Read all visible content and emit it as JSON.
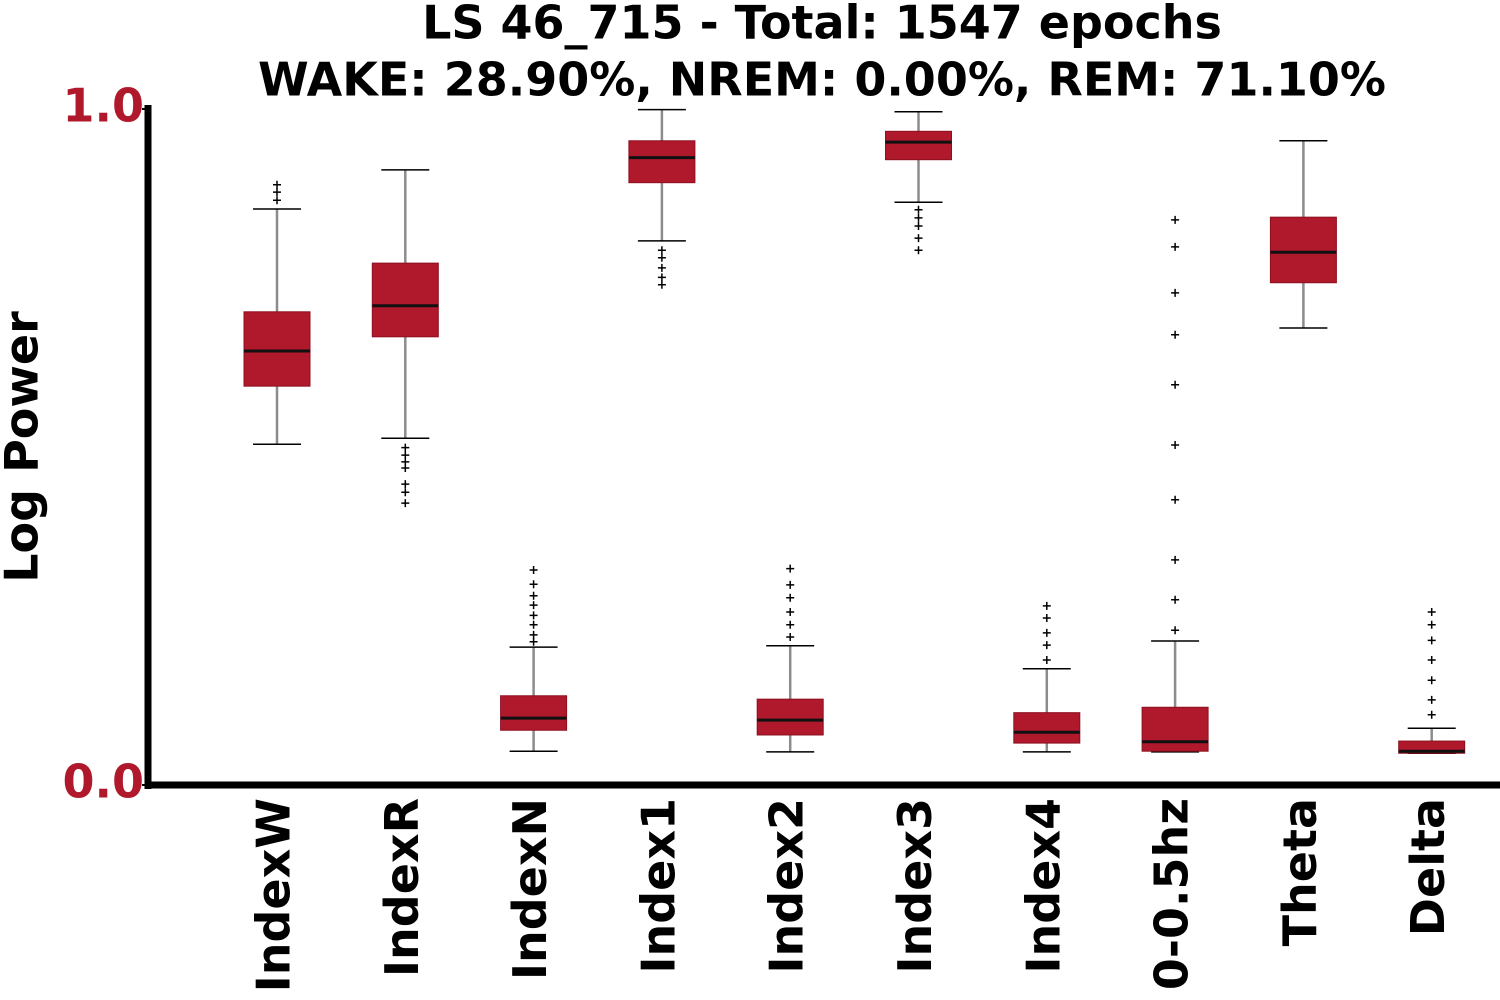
{
  "chart_data": {
    "type": "box",
    "title": "LS 46_715 - Total: 1547 epochs",
    "subtitle": "WAKE: 28.90%, NREM: 0.00%, REM: 71.10%",
    "y_label": "Log Power",
    "color": "#b0182c",
    "tick_color": "#b0182c",
    "ylim": [
      0,
      1
    ],
    "yticks": [
      {
        "value": 0,
        "label": "0.0"
      },
      {
        "value": 1,
        "label": "1.0"
      }
    ],
    "categories": [
      "IndexW",
      "IndexR",
      "IndexN",
      "Index1",
      "Index2",
      "Index3",
      "Index4",
      "0-0.5hz",
      "Theta",
      "Delta"
    ],
    "boxes": [
      {
        "whislo": 0.504,
        "q1": 0.59,
        "med": 0.642,
        "q3": 0.7,
        "whishi": 0.852,
        "fliers": [
          0.865,
          0.877,
          0.888
        ]
      },
      {
        "whislo": 0.513,
        "q1": 0.663,
        "med": 0.709,
        "q3": 0.772,
        "whishi": 0.91,
        "fliers": [
          0.499,
          0.488,
          0.478,
          0.469,
          0.445,
          0.433,
          0.417
        ]
      },
      {
        "whislo": 0.05,
        "q1": 0.081,
        "med": 0.099,
        "q3": 0.132,
        "whishi": 0.204,
        "fliers": [
          0.318,
          0.297,
          0.28,
          0.266,
          0.251,
          0.237,
          0.222,
          0.212
        ]
      },
      {
        "whislo": 0.805,
        "q1": 0.891,
        "med": 0.928,
        "q3": 0.953,
        "whishi": 0.999,
        "fliers": [
          0.791,
          0.78,
          0.765,
          0.751,
          0.74
        ]
      },
      {
        "whislo": 0.049,
        "q1": 0.074,
        "med": 0.096,
        "q3": 0.127,
        "whishi": 0.206,
        "fliers": [
          0.32,
          0.296,
          0.277,
          0.256,
          0.237,
          0.219
        ]
      },
      {
        "whislo": 0.862,
        "q1": 0.925,
        "med": 0.951,
        "q3": 0.967,
        "whishi": 0.996,
        "fliers": [
          0.851,
          0.839,
          0.827,
          0.809,
          0.791
        ]
      },
      {
        "whislo": 0.049,
        "q1": 0.062,
        "med": 0.078,
        "q3": 0.107,
        "whishi": 0.172,
        "fliers": [
          0.265,
          0.247,
          0.225,
          0.207,
          0.185
        ]
      },
      {
        "whislo": 0.049,
        "q1": 0.05,
        "med": 0.064,
        "q3": 0.115,
        "whishi": 0.213,
        "fliers": [
          0.836,
          0.796,
          0.728,
          0.666,
          0.592,
          0.503,
          0.422,
          0.333,
          0.274,
          0.229
        ]
      },
      {
        "whislo": 0.676,
        "q1": 0.743,
        "med": 0.788,
        "q3": 0.84,
        "whishi": 0.953,
        "fliers": []
      },
      {
        "whislo": 0.047,
        "q1": 0.047,
        "med": 0.05,
        "q3": 0.065,
        "whishi": 0.084,
        "fliers": [
          0.256,
          0.237,
          0.214,
          0.185,
          0.155,
          0.126,
          0.104
        ]
      }
    ]
  }
}
